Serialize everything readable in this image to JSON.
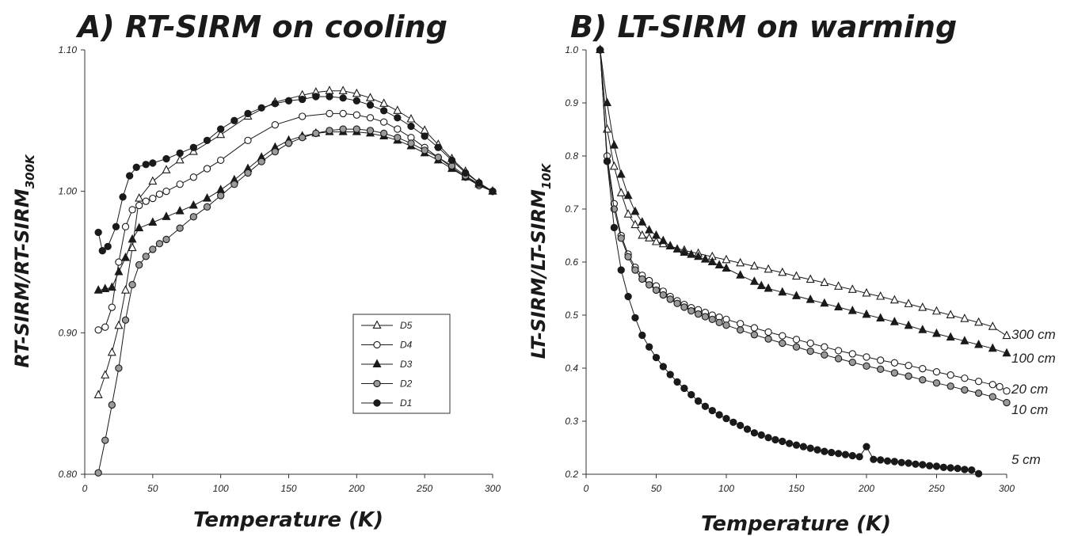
{
  "chart_data": [
    {
      "type": "line",
      "title": "A) RT-SIRM on cooling",
      "xlabel": "Temperature (K)",
      "ylabel_main": "RT-SIRM/RT-SIRM",
      "ylabel_sub": "300K",
      "xlim": [
        0,
        300
      ],
      "ylim": [
        0.8,
        1.1
      ],
      "xticks": [
        "0",
        "50",
        "100",
        "150",
        "200",
        "250",
        "300"
      ],
      "yticks": [
        "0.80",
        "0.90",
        "1.00",
        "1.10"
      ],
      "legend_position": "center-right",
      "series": [
        {
          "name": "D5",
          "marker": "triangle-open",
          "x": [
            10,
            15,
            20,
            25,
            30,
            35,
            40,
            50,
            60,
            70,
            80,
            100,
            120,
            140,
            160,
            170,
            180,
            190,
            200,
            210,
            220,
            230,
            240,
            250,
            260,
            270,
            280,
            290,
            300
          ],
          "y": [
            0.856,
            0.87,
            0.886,
            0.905,
            0.93,
            0.96,
            0.995,
            1.007,
            1.015,
            1.022,
            1.028,
            1.04,
            1.053,
            1.063,
            1.068,
            1.07,
            1.071,
            1.071,
            1.069,
            1.066,
            1.062,
            1.057,
            1.051,
            1.043,
            1.033,
            1.023,
            1.014,
            1.006,
            1.0
          ]
        },
        {
          "name": "D4",
          "marker": "circle-open",
          "x": [
            10,
            15,
            20,
            25,
            30,
            35,
            40,
            45,
            50,
            55,
            60,
            70,
            80,
            90,
            100,
            120,
            140,
            160,
            180,
            190,
            200,
            210,
            220,
            230,
            240,
            250,
            260,
            270,
            280,
            290,
            300
          ],
          "y": [
            0.902,
            0.904,
            0.918,
            0.95,
            0.975,
            0.987,
            0.99,
            0.993,
            0.995,
            0.998,
            1.0,
            1.005,
            1.01,
            1.016,
            1.022,
            1.036,
            1.047,
            1.053,
            1.055,
            1.055,
            1.054,
            1.052,
            1.049,
            1.044,
            1.038,
            1.031,
            1.024,
            1.017,
            1.01,
            1.004,
            1.0
          ]
        },
        {
          "name": "D3",
          "marker": "triangle-filled",
          "x": [
            10,
            15,
            20,
            25,
            30,
            35,
            40,
            50,
            60,
            70,
            80,
            90,
            100,
            110,
            120,
            130,
            140,
            150,
            160,
            170,
            180,
            190,
            200,
            210,
            220,
            230,
            240,
            250,
            260,
            270,
            280,
            290,
            300
          ],
          "y": [
            0.93,
            0.931,
            0.932,
            0.943,
            0.953,
            0.966,
            0.974,
            0.978,
            0.982,
            0.986,
            0.99,
            0.995,
            1.001,
            1.008,
            1.016,
            1.024,
            1.031,
            1.036,
            1.039,
            1.041,
            1.042,
            1.042,
            1.042,
            1.041,
            1.039,
            1.036,
            1.032,
            1.027,
            1.022,
            1.016,
            1.01,
            1.005,
            1.0
          ]
        },
        {
          "name": "D2",
          "marker": "circle-gray",
          "x": [
            10,
            15,
            20,
            25,
            30,
            35,
            40,
            45,
            50,
            55,
            60,
            70,
            80,
            90,
            100,
            110,
            120,
            130,
            140,
            150,
            160,
            170,
            180,
            190,
            200,
            210,
            220,
            230,
            240,
            250,
            260,
            270,
            280,
            290,
            300
          ],
          "y": [
            0.801,
            0.824,
            0.849,
            0.875,
            0.909,
            0.934,
            0.948,
            0.954,
            0.959,
            0.963,
            0.966,
            0.974,
            0.982,
            0.989,
            0.997,
            1.005,
            1.013,
            1.021,
            1.028,
            1.034,
            1.038,
            1.041,
            1.043,
            1.044,
            1.044,
            1.043,
            1.041,
            1.038,
            1.034,
            1.029,
            1.024,
            1.018,
            1.011,
            1.005,
            1.0
          ]
        },
        {
          "name": "D1",
          "marker": "circle-filled",
          "x": [
            10,
            13,
            17,
            23,
            28,
            33,
            38,
            45,
            50,
            60,
            70,
            80,
            90,
            100,
            110,
            120,
            130,
            140,
            150,
            160,
            170,
            180,
            190,
            200,
            210,
            220,
            230,
            240,
            250,
            260,
            270,
            280,
            290,
            300
          ],
          "y": [
            0.971,
            0.958,
            0.961,
            0.975,
            0.996,
            1.011,
            1.017,
            1.019,
            1.02,
            1.023,
            1.027,
            1.031,
            1.036,
            1.044,
            1.05,
            1.055,
            1.059,
            1.062,
            1.064,
            1.065,
            1.067,
            1.067,
            1.066,
            1.064,
            1.061,
            1.057,
            1.052,
            1.046,
            1.039,
            1.031,
            1.022,
            1.013,
            1.006,
            1.0
          ]
        }
      ]
    },
    {
      "type": "line",
      "title": "B) LT-SIRM on warming",
      "xlabel": "Temperature (K)",
      "ylabel_main": "LT-SIRM/LT-SIRM",
      "ylabel_sub": "10K",
      "xlim": [
        0,
        300
      ],
      "ylim": [
        0.2,
        1.0
      ],
      "xticks": [
        "0",
        "50",
        "100",
        "150",
        "200",
        "250",
        "300"
      ],
      "yticks": [
        "0.2",
        "0.3",
        "0.4",
        "0.5",
        "0.6",
        "0.7",
        "0.8",
        "0.9",
        "1.0"
      ],
      "series": [
        {
          "name": "300 cm",
          "marker": "triangle-open",
          "x": [
            10,
            15,
            20,
            25,
            30,
            35,
            40,
            45,
            50,
            55,
            60,
            70,
            80,
            90,
            100,
            110,
            120,
            130,
            140,
            150,
            160,
            170,
            180,
            190,
            200,
            210,
            220,
            230,
            240,
            250,
            260,
            270,
            280,
            290,
            300
          ],
          "y": [
            1.0,
            0.85,
            0.78,
            0.73,
            0.69,
            0.67,
            0.65,
            0.645,
            0.638,
            0.634,
            0.63,
            0.622,
            0.616,
            0.61,
            0.604,
            0.598,
            0.592,
            0.586,
            0.58,
            0.573,
            0.567,
            0.561,
            0.554,
            0.548,
            0.541,
            0.535,
            0.528,
            0.521,
            0.514,
            0.507,
            0.5,
            0.493,
            0.486,
            0.478,
            0.461
          ]
        },
        {
          "name": "100 cm",
          "marker": "triangle-filled",
          "x": [
            10,
            15,
            20,
            25,
            30,
            35,
            40,
            45,
            50,
            55,
            60,
            65,
            70,
            75,
            80,
            85,
            90,
            95,
            100,
            110,
            120,
            125,
            130,
            140,
            150,
            160,
            170,
            180,
            190,
            200,
            210,
            220,
            230,
            240,
            250,
            260,
            270,
            280,
            290,
            300
          ],
          "y": [
            1.0,
            0.9,
            0.82,
            0.765,
            0.725,
            0.695,
            0.675,
            0.66,
            0.65,
            0.64,
            0.63,
            0.624,
            0.618,
            0.614,
            0.61,
            0.605,
            0.6,
            0.594,
            0.588,
            0.575,
            0.563,
            0.555,
            0.55,
            0.543,
            0.536,
            0.529,
            0.522,
            0.515,
            0.508,
            0.501,
            0.494,
            0.487,
            0.48,
            0.472,
            0.465,
            0.458,
            0.451,
            0.444,
            0.437,
            0.428
          ]
        },
        {
          "name": "20 cm",
          "marker": "circle-open",
          "x": [
            10,
            15,
            20,
            25,
            30,
            35,
            40,
            45,
            50,
            55,
            60,
            65,
            70,
            75,
            80,
            85,
            90,
            95,
            100,
            110,
            120,
            130,
            140,
            150,
            160,
            170,
            180,
            190,
            200,
            210,
            220,
            230,
            240,
            250,
            260,
            270,
            280,
            290,
            295,
            300
          ],
          "y": [
            1.0,
            0.8,
            0.71,
            0.65,
            0.615,
            0.59,
            0.575,
            0.565,
            0.555,
            0.545,
            0.535,
            0.527,
            0.52,
            0.514,
            0.51,
            0.505,
            0.5,
            0.496,
            0.492,
            0.484,
            0.476,
            0.468,
            0.461,
            0.454,
            0.447,
            0.44,
            0.433,
            0.427,
            0.421,
            0.415,
            0.41,
            0.405,
            0.399,
            0.393,
            0.387,
            0.381,
            0.375,
            0.369,
            0.365,
            0.357
          ]
        },
        {
          "name": "10 cm",
          "marker": "circle-gray",
          "x": [
            10,
            15,
            20,
            25,
            30,
            35,
            40,
            45,
            50,
            55,
            60,
            65,
            70,
            75,
            80,
            85,
            90,
            95,
            100,
            110,
            120,
            130,
            140,
            150,
            160,
            170,
            180,
            190,
            200,
            210,
            220,
            230,
            240,
            250,
            260,
            270,
            280,
            290,
            300
          ],
          "y": [
            1.0,
            0.79,
            0.7,
            0.645,
            0.61,
            0.585,
            0.568,
            0.557,
            0.547,
            0.538,
            0.53,
            0.522,
            0.515,
            0.508,
            0.502,
            0.497,
            0.492,
            0.486,
            0.481,
            0.472,
            0.463,
            0.455,
            0.447,
            0.44,
            0.432,
            0.425,
            0.418,
            0.411,
            0.404,
            0.398,
            0.391,
            0.385,
            0.378,
            0.372,
            0.366,
            0.359,
            0.353,
            0.346,
            0.335
          ]
        },
        {
          "name": "5 cm",
          "marker": "circle-filled",
          "x": [
            10,
            15,
            20,
            25,
            30,
            35,
            40,
            45,
            50,
            55,
            60,
            65,
            70,
            75,
            80,
            85,
            90,
            95,
            100,
            105,
            110,
            115,
            120,
            125,
            130,
            135,
            140,
            145,
            150,
            155,
            160,
            165,
            170,
            175,
            180,
            185,
            190,
            195,
            200,
            205,
            210,
            215,
            220,
            225,
            230,
            235,
            240,
            245,
            250,
            255,
            260,
            265,
            270,
            275,
            280
          ],
          "y": [
            1.0,
            0.79,
            0.665,
            0.585,
            0.535,
            0.495,
            0.462,
            0.44,
            0.42,
            0.403,
            0.388,
            0.374,
            0.362,
            0.35,
            0.338,
            0.328,
            0.32,
            0.312,
            0.305,
            0.298,
            0.292,
            0.285,
            0.278,
            0.274,
            0.269,
            0.265,
            0.262,
            0.258,
            0.255,
            0.252,
            0.249,
            0.246,
            0.243,
            0.241,
            0.239,
            0.237,
            0.235,
            0.233,
            0.252,
            0.228,
            0.227,
            0.225,
            0.224,
            0.222,
            0.221,
            0.219,
            0.218,
            0.216,
            0.215,
            0.213,
            0.212,
            0.211,
            0.209,
            0.208,
            0.201
          ]
        }
      ]
    }
  ]
}
